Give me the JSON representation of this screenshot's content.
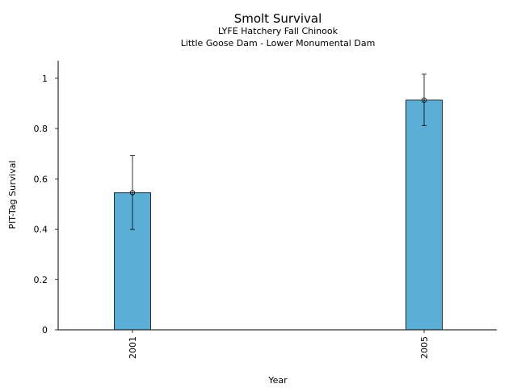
{
  "chart_data": {
    "type": "bar",
    "title": "Smolt Survival",
    "subtitle": [
      "LYFE Hatchery Fall Chinook",
      "Little Goose Dam - Lower Monumental Dam"
    ],
    "xlabel": "Year",
    "ylabel": "PIT-Tag Survival",
    "categories": [
      "2001",
      "2005"
    ],
    "values": [
      0.545,
      0.913
    ],
    "error_low": [
      0.399,
      0.812
    ],
    "error_high": [
      0.692,
      1.016
    ],
    "ylim": [
      0,
      1.07
    ],
    "yticks": [
      0,
      0.2,
      0.4,
      0.6,
      0.8,
      1
    ],
    "ytick_labels": [
      "0",
      "0.2",
      "0.4",
      "0.6",
      "0.8",
      "1"
    ],
    "grid": false,
    "colors": {
      "bar": "#5bafd7",
      "edge": "#000000"
    }
  }
}
